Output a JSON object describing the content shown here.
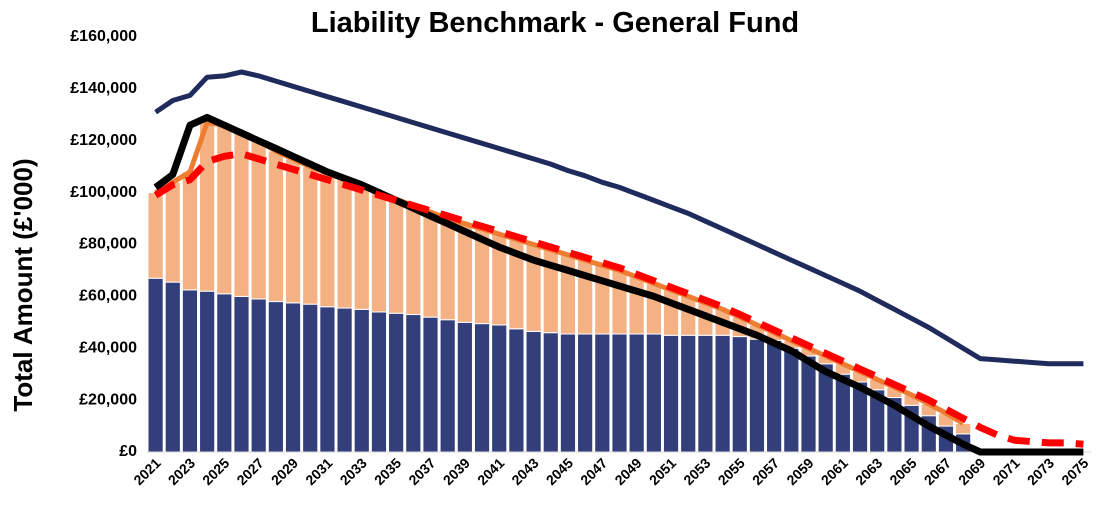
{
  "chart_data": {
    "type": "bar",
    "title": "Liability Benchmark - General Fund",
    "y_label": "Total Amount (£'000)",
    "categories": [
      "2021",
      null,
      "2023",
      null,
      "2025",
      null,
      "2027",
      null,
      "2029",
      null,
      "2031",
      null,
      "2033",
      null,
      "2035",
      null,
      "2037",
      null,
      "2039",
      null,
      "2041",
      null,
      "2043",
      null,
      "2045",
      null,
      "2047",
      null,
      "2049",
      null,
      "2051",
      null,
      "2053",
      null,
      "2055",
      null,
      "2057",
      null,
      "2059",
      null,
      "2061",
      null,
      "2063",
      null,
      "2065",
      null,
      "2067",
      null,
      "2069",
      null,
      "2071",
      null,
      "2073",
      null,
      "2075"
    ],
    "ylim": [
      0,
      160000
    ],
    "yticks": [
      {
        "value": 0,
        "label": "£0"
      },
      {
        "value": 20000,
        "label": "£20,000"
      },
      {
        "value": 40000,
        "label": "£40,000"
      },
      {
        "value": 60000,
        "label": "£60,000"
      },
      {
        "value": 80000,
        "label": "£80,000"
      },
      {
        "value": 100000,
        "label": "£100,000"
      },
      {
        "value": 120000,
        "label": "£120,000"
      },
      {
        "value": 140000,
        "label": "£140,000"
      },
      {
        "value": 160000,
        "label": "£160,000"
      }
    ],
    "grid": false,
    "series": [
      {
        "type": "bar",
        "color": "#333f7a",
        "values": [
          67000,
          65500,
          62500,
          62000,
          61000,
          60000,
          59000,
          58000,
          57500,
          57000,
          56000,
          55500,
          55000,
          54000,
          53500,
          53000,
          52000,
          51000,
          50000,
          49500,
          49000,
          47500,
          46500,
          46000,
          45500,
          45500,
          45500,
          45500,
          45500,
          45500,
          45000,
          45000,
          45000,
          45000,
          44500,
          43500,
          43000,
          40000,
          37000,
          34000,
          30000,
          27000,
          24000,
          21000,
          18000,
          14000,
          10000,
          7000,
          0,
          0,
          0,
          0,
          0,
          0,
          0
        ]
      },
      {
        "type": "bar",
        "color": "#f4b183",
        "values": [
          33000,
          38500,
          45500,
          65000,
          65000,
          63000,
          61000,
          58000,
          55500,
          53000,
          51500,
          49500,
          47500,
          46000,
          44000,
          42000,
          40500,
          39000,
          38000,
          36500,
          35000,
          34500,
          33500,
          32000,
          30500,
          28500,
          26500,
          24500,
          22000,
          19500,
          17500,
          15000,
          12500,
          10000,
          7500,
          5500,
          3000,
          3000,
          3000,
          3000,
          4000,
          4000,
          4000,
          4000,
          4000,
          4500,
          5000,
          4000,
          0,
          0,
          0,
          0,
          0,
          0,
          0
        ]
      },
      {
        "type": "line",
        "color": "#ed7d31",
        "width": 5,
        "dash": false,
        "values": [
          100000,
          104000,
          108000,
          127000,
          126000,
          123000,
          120000,
          116000,
          113000,
          110000,
          107500,
          105000,
          102500,
          100000,
          97500,
          95000,
          92500,
          90000,
          88000,
          86000,
          84000,
          82000,
          80000,
          78000,
          76000,
          74000,
          72000,
          70000,
          67500,
          65000,
          62500,
          60000,
          57500,
          55000,
          52000,
          49000,
          46000,
          43000,
          40000,
          37000,
          34000,
          31000,
          28000,
          25000,
          22000,
          18500,
          15000,
          11000,
          null,
          null,
          null,
          null,
          null,
          null,
          null
        ]
      },
      {
        "type": "line",
        "color": "#1f2b5c",
        "width": 5,
        "dash": false,
        "values": [
          131000,
          135500,
          137500,
          144500,
          145000,
          146500,
          145000,
          143000,
          141000,
          139000,
          137000,
          135000,
          133000,
          131000,
          129000,
          127000,
          125000,
          123000,
          121000,
          119000,
          117000,
          115000,
          113000,
          111000,
          108500,
          106500,
          104000,
          102000,
          99500,
          97000,
          94500,
          92000,
          89000,
          86000,
          83000,
          80000,
          77000,
          74000,
          71000,
          68000,
          65000,
          62000,
          58500,
          55000,
          51500,
          48000,
          44000,
          40000,
          36000,
          35500,
          35000,
          34500,
          34000,
          34000,
          34000
        ]
      },
      {
        "type": "line",
        "color": "#000000",
        "width": 7,
        "dash": false,
        "values": [
          102000,
          107000,
          126000,
          129000,
          126000,
          123000,
          120000,
          117000,
          114000,
          111000,
          108000,
          105500,
          103000,
          100000,
          97000,
          94000,
          91000,
          88000,
          85000,
          82000,
          79000,
          76500,
          74000,
          72000,
          70000,
          68000,
          66000,
          64000,
          62000,
          60000,
          57500,
          55000,
          52500,
          50000,
          47500,
          45000,
          42000,
          39000,
          35000,
          31000,
          28000,
          25000,
          21500,
          18000,
          14000,
          10000,
          6500,
          3000,
          0,
          0,
          0,
          0,
          0,
          0,
          0
        ]
      },
      {
        "type": "line",
        "color": "#ff0000",
        "width": 7,
        "dash": true,
        "values": [
          99000,
          103000,
          105000,
          112000,
          114000,
          115000,
          113000,
          111000,
          109000,
          107000,
          105000,
          103000,
          101000,
          99000,
          97000,
          95000,
          93000,
          91000,
          89000,
          87000,
          85000,
          83000,
          81000,
          79000,
          77000,
          75000,
          73000,
          71000,
          68500,
          66000,
          63500,
          61000,
          58500,
          56000,
          53000,
          50000,
          47000,
          44000,
          41000,
          38000,
          35000,
          32000,
          29000,
          26000,
          23000,
          20000,
          16500,
          13000,
          9500,
          6500,
          4500,
          4000,
          3500,
          3500,
          3000
        ]
      }
    ]
  }
}
